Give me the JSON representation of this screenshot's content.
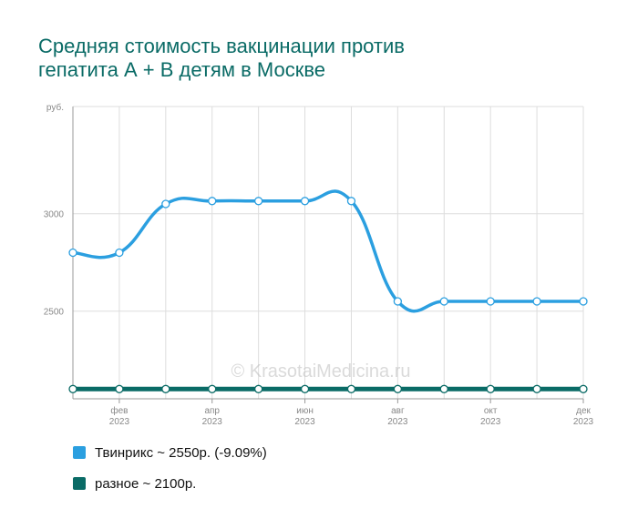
{
  "title_lines": [
    "Средняя стоимость вакцинации против",
    "гепатита А + В детям в Москве"
  ],
  "watermark": "© KrasotaiMedicina.ru",
  "colors": {
    "title": "#0a6b66",
    "twinrix": "#2b9fe0",
    "other": "#0a6b66",
    "grid": "#dddddd"
  },
  "chart_data": {
    "type": "line",
    "y_unit": "руб.",
    "ylim": [
      2050,
      3550
    ],
    "yticks": [
      2500,
      3000
    ],
    "x": [
      "2023-01",
      "2023-02",
      "2023-03",
      "2023-04",
      "2023-05",
      "2023-06",
      "2023-07",
      "2023-08",
      "2023-09",
      "2023-10",
      "2023-11",
      "2023-12"
    ],
    "xtick_labels": [
      {
        "index": 1,
        "month": "фев",
        "year": "2023"
      },
      {
        "index": 3,
        "month": "апр",
        "year": "2023"
      },
      {
        "index": 5,
        "month": "июн",
        "year": "2023"
      },
      {
        "index": 7,
        "month": "авг",
        "year": "2023"
      },
      {
        "index": 9,
        "month": "окт",
        "year": "2023"
      },
      {
        "index": 11,
        "month": "дек",
        "year": "2023"
      }
    ],
    "series": [
      {
        "name": "Твинрикс",
        "values": [
          2800,
          2800,
          3050,
          3065,
          3065,
          3065,
          3065,
          2550,
          2550,
          2550,
          2550,
          2550
        ]
      },
      {
        "name": "разное",
        "values": [
          2100,
          2100,
          2100,
          2100,
          2100,
          2100,
          2100,
          2100,
          2100,
          2100,
          2100,
          2100
        ]
      }
    ],
    "legend_position": "bottom-left",
    "grid": true
  },
  "legend": [
    {
      "label": "Твинрикс ~ 2550р. (-9.09%)",
      "color": "#2b9fe0"
    },
    {
      "label": "разное ~ 2100р.",
      "color": "#0a6b66"
    }
  ]
}
